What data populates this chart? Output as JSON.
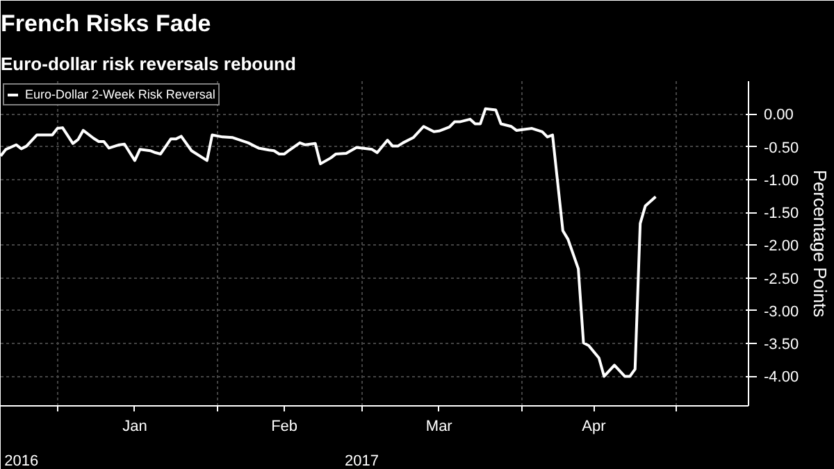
{
  "chart_data": {
    "type": "line",
    "title": "French Risks Fade",
    "subtitle": "Euro-dollar risk reversals rebound",
    "ylabel": "Percentage Points",
    "x": [
      "2016-12-21",
      "2016-12-22",
      "2016-12-24",
      "2016-12-25",
      "2016-12-26",
      "2016-12-28",
      "2016-12-31",
      "2017-01-01",
      "2017-01-02",
      "2017-01-04",
      "2017-01-05",
      "2017-01-06",
      "2017-01-08",
      "2017-01-09",
      "2017-01-10",
      "2017-01-11",
      "2017-01-13",
      "2017-01-14",
      "2017-01-16",
      "2017-01-17",
      "2017-01-19",
      "2017-01-20",
      "2017-01-21",
      "2017-01-23",
      "2017-01-24",
      "2017-01-25",
      "2017-01-27",
      "2017-01-30",
      "2017-01-31",
      "2017-02-02",
      "2017-02-04",
      "2017-02-07",
      "2017-02-09",
      "2017-02-11",
      "2017-02-12",
      "2017-02-13",
      "2017-02-14",
      "2017-02-15",
      "2017-02-17",
      "2017-02-18",
      "2017-02-20",
      "2017-02-21",
      "2017-02-23",
      "2017-02-24",
      "2017-02-26",
      "2017-02-28",
      "2017-03-03",
      "2017-03-04",
      "2017-03-06",
      "2017-03-07",
      "2017-03-08",
      "2017-03-09",
      "2017-03-11",
      "2017-03-13",
      "2017-03-14",
      "2017-03-15",
      "2017-03-16",
      "2017-03-18",
      "2017-03-19",
      "2017-03-20",
      "2017-03-22",
      "2017-03-23",
      "2017-03-24",
      "2017-03-25",
      "2017-03-27",
      "2017-03-28",
      "2017-03-30",
      "2017-03-31",
      "2017-04-02",
      "2017-04-03",
      "2017-04-05",
      "2017-04-06",
      "2017-04-07",
      "2017-04-09",
      "2017-04-10",
      "2017-04-12",
      "2017-04-13",
      "2017-04-14",
      "2017-04-16",
      "2017-04-17",
      "2017-04-19",
      "2017-04-21",
      "2017-04-22",
      "2017-04-23",
      "2017-04-24",
      "2017-04-25",
      "2017-04-27"
    ],
    "series": [
      {
        "name": "Euro-Dollar 2-Week Risk Reversal",
        "color": "#ffffff",
        "values": [
          -0.64,
          -0.54,
          -0.47,
          -0.53,
          -0.49,
          -0.32,
          -0.32,
          -0.22,
          -0.21,
          -0.45,
          -0.39,
          -0.25,
          -0.37,
          -0.42,
          -0.42,
          -0.52,
          -0.47,
          -0.46,
          -0.71,
          -0.54,
          -0.56,
          -0.59,
          -0.61,
          -0.38,
          -0.38,
          -0.34,
          -0.56,
          -0.71,
          -0.32,
          -0.35,
          -0.36,
          -0.44,
          -0.52,
          -0.55,
          -0.56,
          -0.61,
          -0.61,
          -0.55,
          -0.44,
          -0.47,
          -0.45,
          -0.76,
          -0.67,
          -0.61,
          -0.6,
          -0.51,
          -0.54,
          -0.59,
          -0.4,
          -0.49,
          -0.49,
          -0.44,
          -0.36,
          -0.19,
          -0.23,
          -0.27,
          -0.26,
          -0.2,
          -0.12,
          -0.12,
          -0.08,
          -0.15,
          -0.15,
          0.08,
          0.06,
          -0.15,
          -0.19,
          -0.25,
          -0.23,
          -0.22,
          -0.27,
          -0.35,
          -0.32,
          -1.78,
          -1.91,
          -2.36,
          -3.49,
          -3.53,
          -3.72,
          -4.0,
          -3.83,
          -4.0,
          -4.0,
          -3.89,
          -1.67,
          -1.4,
          -1.26
        ]
      }
    ],
    "xlim": [
      "2016-12-21",
      "2017-05-15"
    ],
    "xticks": [
      {
        "value": "2017-01-01",
        "label": null
      },
      {
        "value": "2017-01-16",
        "label": "Jan"
      },
      {
        "value": "2017-02-01",
        "label": null
      },
      {
        "value": "2017-02-14",
        "label": "Feb"
      },
      {
        "value": "2017-03-01",
        "label": null
      },
      {
        "value": "2017-03-16",
        "label": "Mar"
      },
      {
        "value": "2017-04-01",
        "label": null
      },
      {
        "value": "2017-04-15",
        "label": "Apr"
      },
      {
        "value": "2017-05-01",
        "label": null
      }
    ],
    "x2lim": [
      "2016-12-21",
      "2017-05-15"
    ],
    "x2ticks": [
      {
        "value": "2016-12-25",
        "label": "2016"
      },
      {
        "value": "2017-03-01",
        "label": "2017"
      }
    ],
    "ylim": [
      -4.45,
      0.5
    ],
    "yticks": [
      {
        "value": 0,
        "label": "0.00"
      },
      {
        "value": -0.5,
        "label": "-0.50"
      },
      {
        "value": -1,
        "label": "-1.00"
      },
      {
        "value": -1.5,
        "label": "-1.50"
      },
      {
        "value": -2,
        "label": "-2.00"
      },
      {
        "value": -2.5,
        "label": "-2.50"
      },
      {
        "value": -3,
        "label": "-3.00"
      },
      {
        "value": -3.5,
        "label": "-3.50"
      },
      {
        "value": -4,
        "label": "-4.00"
      }
    ],
    "grid": true,
    "legend": "top left",
    "marker": "none",
    "line_style": "solid"
  }
}
